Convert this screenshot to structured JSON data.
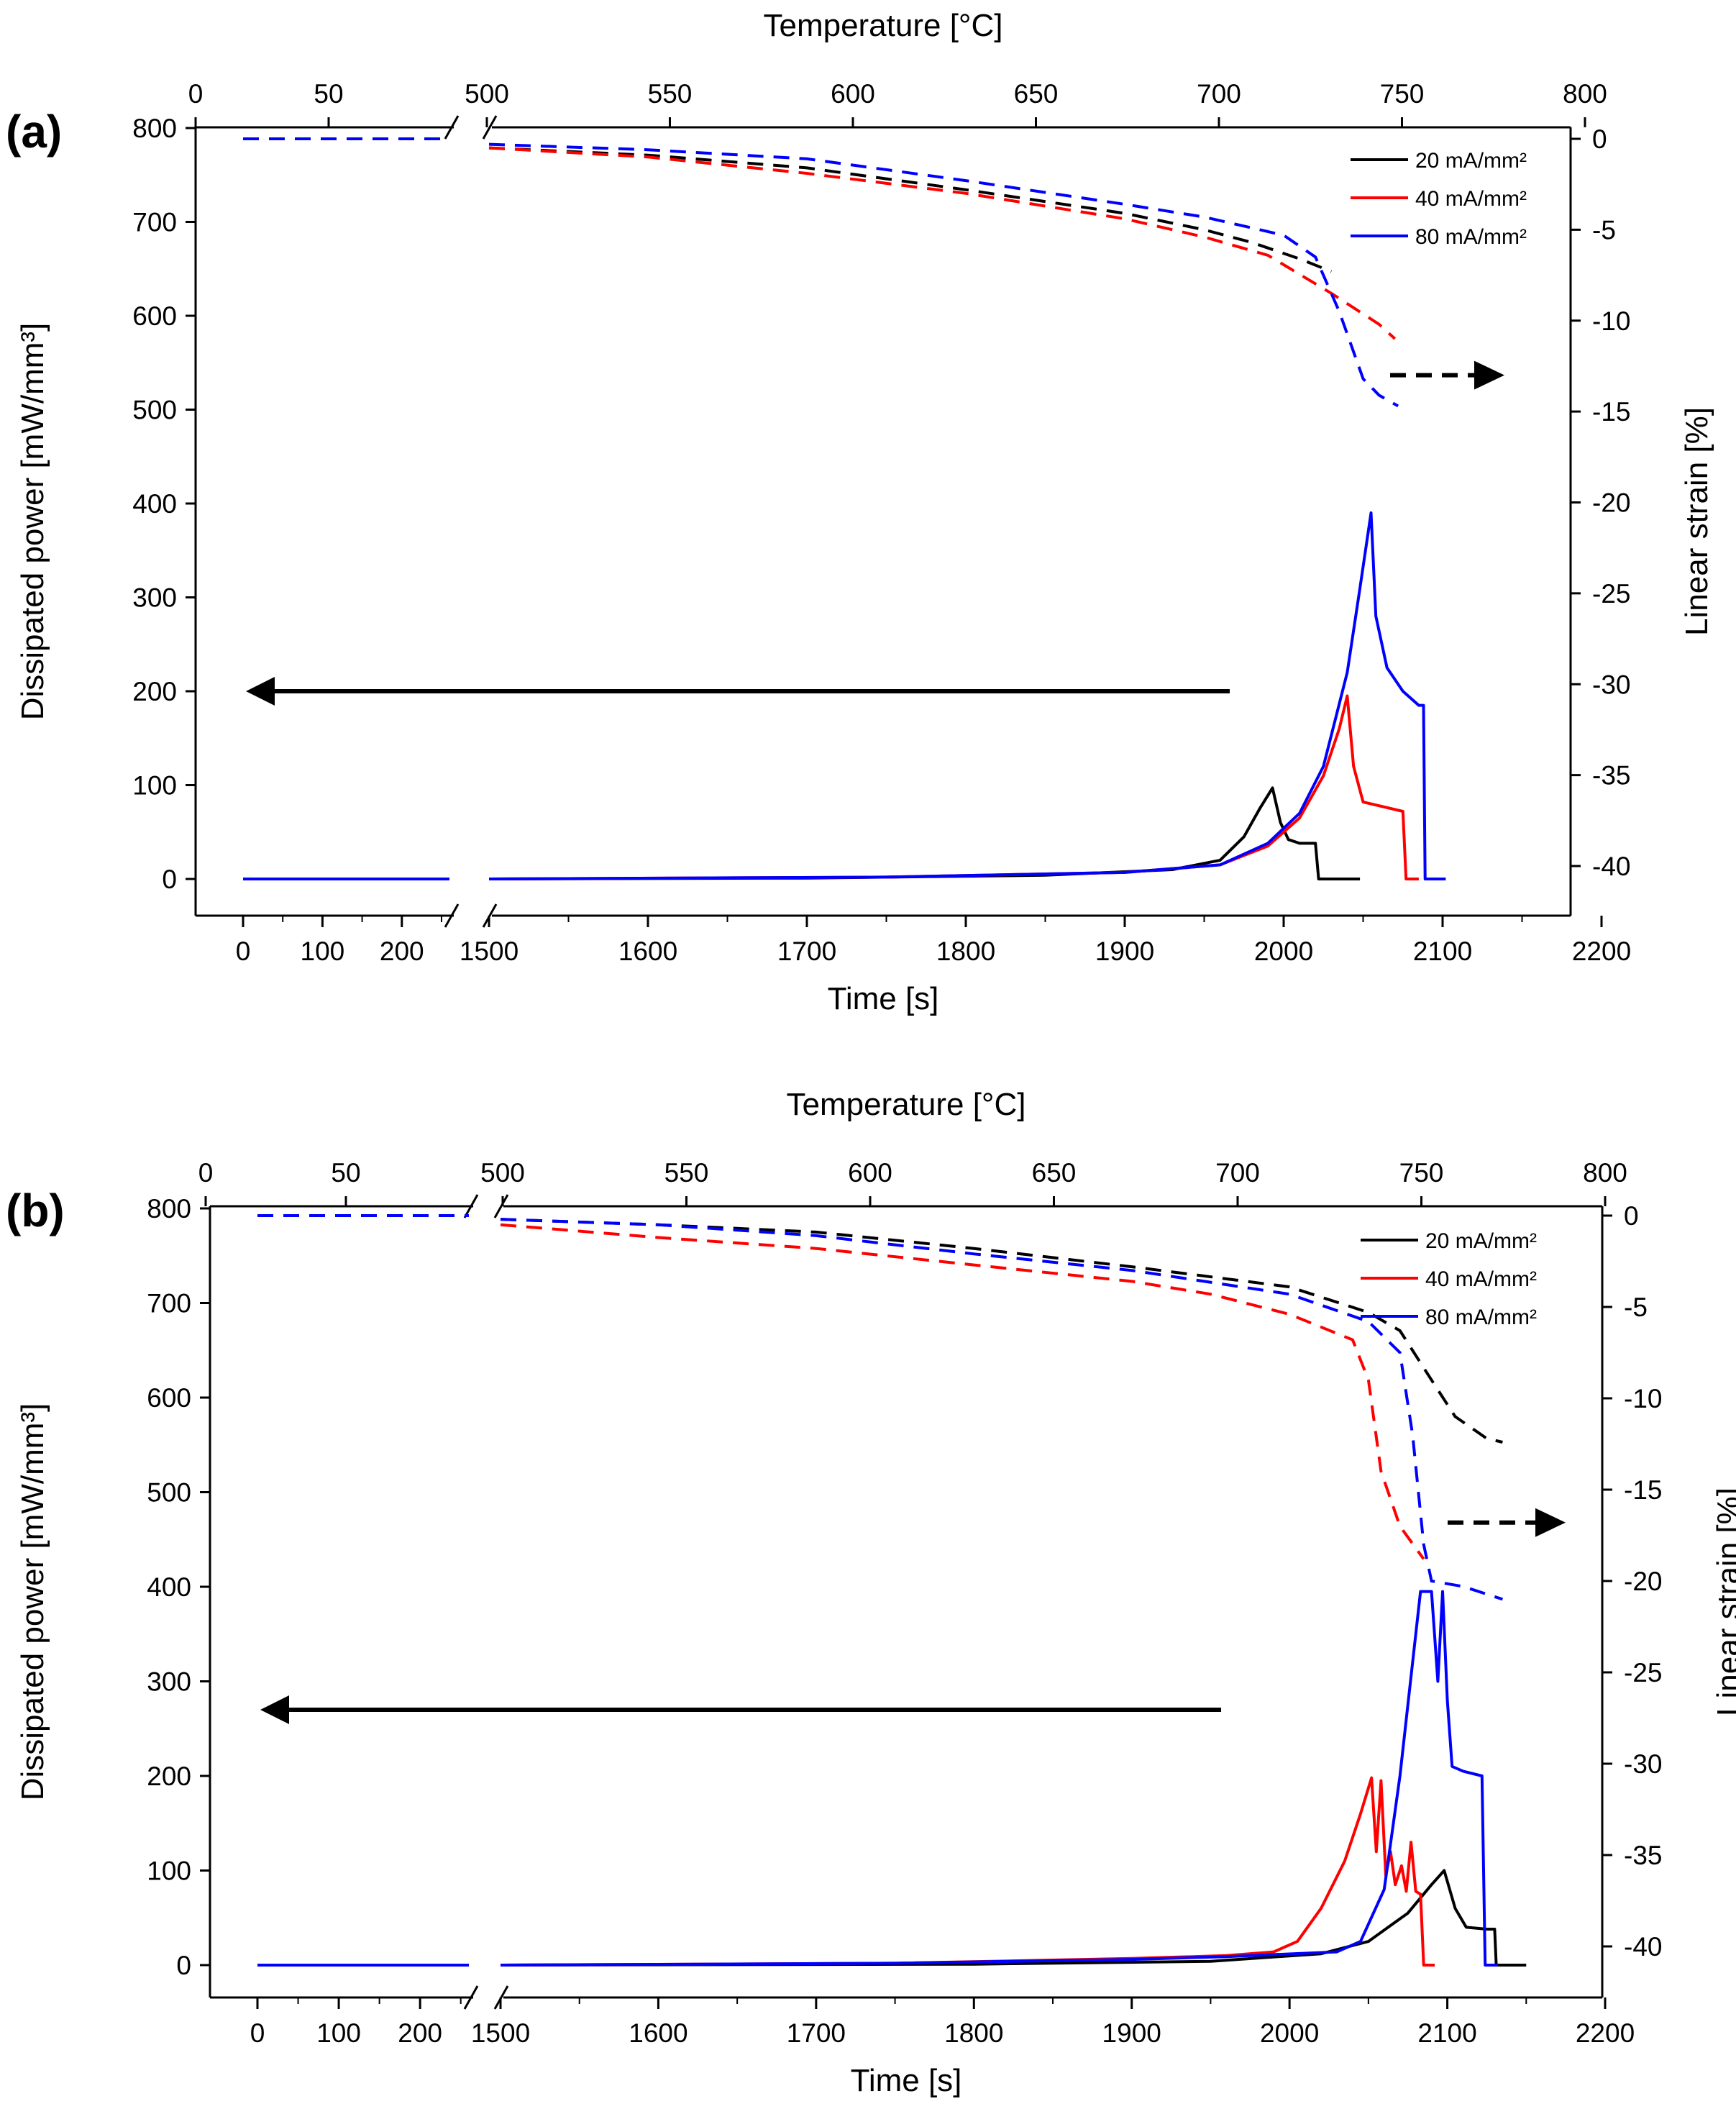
{
  "chart_data": [
    {
      "type": "line",
      "panel_label": "(a)",
      "title": "",
      "xlabel": "Time [s]",
      "ylabel": "Dissipated power [mW/mm³]",
      "top_xlabel": "Temperature [°C]",
      "right_ylabel": "Linear strain [%]",
      "xlim": [
        0,
        2200
      ],
      "axis_break": [
        260,
        1500
      ],
      "x_ticks_low": [
        "0",
        "100",
        "200"
      ],
      "x_ticks_high": [
        "1500",
        "1600",
        "1700",
        "1800",
        "1900",
        "2000",
        "2100",
        "2200"
      ],
      "ylim": [
        0,
        800
      ],
      "y_ticks": [
        "0",
        "100",
        "200",
        "300",
        "400",
        "500",
        "600",
        "700",
        "800"
      ],
      "top_ticks_low": [
        "0",
        "50"
      ],
      "top_ticks_high": [
        "500",
        "550",
        "600",
        "650",
        "700",
        "750",
        "800"
      ],
      "right_ticks": [
        "0",
        "-5",
        "-10",
        "-15",
        "-20",
        "-25",
        "-30",
        "-35",
        "-40"
      ],
      "legend": [
        "20 mA/mm²",
        "40 mA/mm²",
        "80 mA/mm²"
      ],
      "colors": {
        "20 mA/mm²": "#000000",
        "40 mA/mm²": "#ff0000",
        "80 mA/mm²": "#0000ff"
      },
      "legend_position": "top-right",
      "annotations": [
        "left arrow: power curves read on left axis",
        "dashed right arrow: strain curves read on right axis"
      ],
      "power_series": [
        {
          "name": "20 mA/mm²",
          "points": [
            [
              0,
              0
            ],
            [
              260,
              0
            ],
            [
              1500,
              0
            ],
            [
              1700,
              1
            ],
            [
              1850,
              4
            ],
            [
              1930,
              10
            ],
            [
              1960,
              20
            ],
            [
              1975,
              45
            ],
            [
              1985,
              75
            ],
            [
              1993,
              97
            ],
            [
              1998,
              60
            ],
            [
              2003,
              42
            ],
            [
              2010,
              38
            ],
            [
              2020,
              38
            ],
            [
              2022,
              0
            ],
            [
              2048,
              0
            ]
          ]
        },
        {
          "name": "40 mA/mm²",
          "points": [
            [
              0,
              0
            ],
            [
              260,
              0
            ],
            [
              1500,
              0
            ],
            [
              1750,
              2
            ],
            [
              1900,
              7
            ],
            [
              1960,
              15
            ],
            [
              1990,
              35
            ],
            [
              2010,
              65
            ],
            [
              2025,
              110
            ],
            [
              2035,
              160
            ],
            [
              2040,
              195
            ],
            [
              2044,
              120
            ],
            [
              2050,
              82
            ],
            [
              2060,
              78
            ],
            [
              2075,
              72
            ],
            [
              2077,
              0
            ],
            [
              2085,
              0
            ]
          ]
        },
        {
          "name": "80 mA/mm²",
          "points": [
            [
              0,
              0
            ],
            [
              260,
              0
            ],
            [
              1500,
              0
            ],
            [
              1750,
              2
            ],
            [
              1900,
              7
            ],
            [
              1960,
              15
            ],
            [
              1990,
              38
            ],
            [
              2010,
              70
            ],
            [
              2025,
              120
            ],
            [
              2040,
              220
            ],
            [
              2048,
              310
            ],
            [
              2055,
              390
            ],
            [
              2058,
              280
            ],
            [
              2065,
              225
            ],
            [
              2075,
              200
            ],
            [
              2085,
              185
            ],
            [
              2088,
              185
            ],
            [
              2089,
              0
            ],
            [
              2102,
              0
            ]
          ]
        }
      ],
      "strain_series": [
        {
          "name": "20 mA/mm²",
          "points": [
            [
              0,
              0
            ],
            [
              260,
              0
            ],
            [
              1500,
              -0.5
            ],
            [
              1600,
              -0.9
            ],
            [
              1700,
              -1.6
            ],
            [
              1800,
              -2.8
            ],
            [
              1900,
              -4.1
            ],
            [
              1950,
              -5
            ],
            [
              1980,
              -5.7
            ],
            [
              2010,
              -6.6
            ],
            [
              2030,
              -7.3
            ]
          ]
        },
        {
          "name": "40 mA/mm²",
          "points": [
            [
              0,
              0
            ],
            [
              260,
              0
            ],
            [
              1500,
              -0.5
            ],
            [
              1600,
              -1
            ],
            [
              1700,
              -1.9
            ],
            [
              1800,
              -3
            ],
            [
              1900,
              -4.4
            ],
            [
              1950,
              -5.4
            ],
            [
              1990,
              -6.4
            ],
            [
              2030,
              -8.5
            ],
            [
              2060,
              -10.2
            ],
            [
              2070,
              -11
            ]
          ]
        },
        {
          "name": "80 mA/mm²",
          "points": [
            [
              0,
              0
            ],
            [
              260,
              0
            ],
            [
              1500,
              -0.3
            ],
            [
              1600,
              -0.6
            ],
            [
              1700,
              -1.1
            ],
            [
              1800,
              -2.3
            ],
            [
              1900,
              -3.6
            ],
            [
              1950,
              -4.3
            ],
            [
              2000,
              -5.3
            ],
            [
              2020,
              -6.5
            ],
            [
              2035,
              -9.5
            ],
            [
              2050,
              -13.2
            ],
            [
              2060,
              -14.1
            ],
            [
              2072,
              -14.7
            ]
          ]
        }
      ]
    },
    {
      "type": "line",
      "panel_label": "(b)",
      "title": "",
      "xlabel": "Time [s]",
      "ylabel": "Dissipated power [mW/mm³]",
      "top_xlabel": "Temperature [°C]",
      "right_ylabel": "Linear strain [%]",
      "xlim": [
        0,
        2200
      ],
      "axis_break": [
        260,
        1500
      ],
      "x_ticks_low": [
        "0",
        "100",
        "200"
      ],
      "x_ticks_high": [
        "1500",
        "1600",
        "1700",
        "1800",
        "1900",
        "2000",
        "2100",
        "2200"
      ],
      "ylim": [
        0,
        800
      ],
      "y_ticks": [
        "0",
        "100",
        "200",
        "300",
        "400",
        "500",
        "600",
        "700",
        "800"
      ],
      "top_ticks_low": [
        "0",
        "50"
      ],
      "top_ticks_high": [
        "500",
        "550",
        "600",
        "650",
        "700",
        "750",
        "800"
      ],
      "right_ticks": [
        "0",
        "-5",
        "-10",
        "-15",
        "-20",
        "-25",
        "-30",
        "-35",
        "-40"
      ],
      "legend": [
        "20 mA/mm²",
        "40 mA/mm²",
        "80 mA/mm²"
      ],
      "colors": {
        "20 mA/mm²": "#000000",
        "40 mA/mm²": "#ff0000",
        "80 mA/mm²": "#0000ff"
      },
      "legend_position": "top-right",
      "annotations": [
        "left arrow: power curves read on left axis",
        "dashed right arrow: strain curves read on right axis"
      ],
      "power_series": [
        {
          "name": "20 mA/mm²",
          "points": [
            [
              0,
              0
            ],
            [
              260,
              0
            ],
            [
              1500,
              0
            ],
            [
              1800,
              1
            ],
            [
              1950,
              4
            ],
            [
              2020,
              12
            ],
            [
              2050,
              25
            ],
            [
              2075,
              55
            ],
            [
              2090,
              85
            ],
            [
              2098,
              100
            ],
            [
              2105,
              60
            ],
            [
              2112,
              40
            ],
            [
              2125,
              38
            ],
            [
              2130,
              38
            ],
            [
              2131,
              0
            ],
            [
              2150,
              0
            ]
          ]
        },
        {
          "name": "40 mA/mm²",
          "points": [
            [
              0,
              0
            ],
            [
              260,
              0
            ],
            [
              1500,
              0
            ],
            [
              1750,
              2
            ],
            [
              1900,
              7
            ],
            [
              1960,
              10
            ],
            [
              1990,
              14
            ],
            [
              2005,
              25
            ],
            [
              2020,
              60
            ],
            [
              2035,
              110
            ],
            [
              2045,
              160
            ],
            [
              2052,
              198
            ],
            [
              2055,
              120
            ],
            [
              2058,
              195
            ],
            [
              2061,
              95
            ],
            [
              2064,
              120
            ],
            [
              2067,
              85
            ],
            [
              2071,
              105
            ],
            [
              2074,
              78
            ],
            [
              2077,
              130
            ],
            [
              2080,
              78
            ],
            [
              2083,
              75
            ],
            [
              2085,
              0
            ],
            [
              2092,
              0
            ]
          ]
        },
        {
          "name": "80 mA/mm²",
          "points": [
            [
              0,
              0
            ],
            [
              260,
              0
            ],
            [
              1500,
              0
            ],
            [
              1750,
              2
            ],
            [
              1900,
              6
            ],
            [
              1960,
              9
            ],
            [
              2030,
              14
            ],
            [
              2045,
              25
            ],
            [
              2060,
              80
            ],
            [
              2070,
              200
            ],
            [
              2078,
              320
            ],
            [
              2083,
              395
            ],
            [
              2090,
              395
            ],
            [
              2094,
              300
            ],
            [
              2097,
              395
            ],
            [
              2100,
              280
            ],
            [
              2103,
              210
            ],
            [
              2110,
              205
            ],
            [
              2122,
              200
            ],
            [
              2124,
              0
            ],
            [
              2132,
              0
            ]
          ]
        }
      ],
      "strain_series": [
        {
          "name": "20 mA/mm²",
          "points": [
            [
              0,
              0
            ],
            [
              260,
              0
            ],
            [
              1500,
              -0.2
            ],
            [
              1600,
              -0.5
            ],
            [
              1700,
              -0.9
            ],
            [
              1800,
              -1.8
            ],
            [
              1900,
              -2.8
            ],
            [
              2000,
              -3.9
            ],
            [
              2050,
              -5.3
            ],
            [
              2070,
              -6.3
            ],
            [
              2090,
              -9
            ],
            [
              2105,
              -11
            ],
            [
              2125,
              -12.2
            ],
            [
              2135,
              -12.4
            ]
          ]
        },
        {
          "name": "40 mA/mm²",
          "points": [
            [
              0,
              0
            ],
            [
              260,
              0
            ],
            [
              1500,
              -0.5
            ],
            [
              1600,
              -1.2
            ],
            [
              1700,
              -1.8
            ],
            [
              1800,
              -2.7
            ],
            [
              1900,
              -3.6
            ],
            [
              1950,
              -4.3
            ],
            [
              2000,
              -5.4
            ],
            [
              2040,
              -6.8
            ],
            [
              2050,
              -9
            ],
            [
              2058,
              -14
            ],
            [
              2070,
              -17
            ],
            [
              2085,
              -18.8
            ]
          ]
        },
        {
          "name": "80 mA/mm²",
          "points": [
            [
              0,
              0
            ],
            [
              260,
              0
            ],
            [
              1500,
              -0.2
            ],
            [
              1600,
              -0.5
            ],
            [
              1700,
              -1.1
            ],
            [
              1800,
              -2.1
            ],
            [
              1900,
              -3
            ],
            [
              2000,
              -4.3
            ],
            [
              2050,
              -5.8
            ],
            [
              2070,
              -7.5
            ],
            [
              2078,
              -12
            ],
            [
              2085,
              -18
            ],
            [
              2090,
              -20
            ],
            [
              2110,
              -20.3
            ],
            [
              2135,
              -21
            ]
          ]
        }
      ]
    }
  ]
}
